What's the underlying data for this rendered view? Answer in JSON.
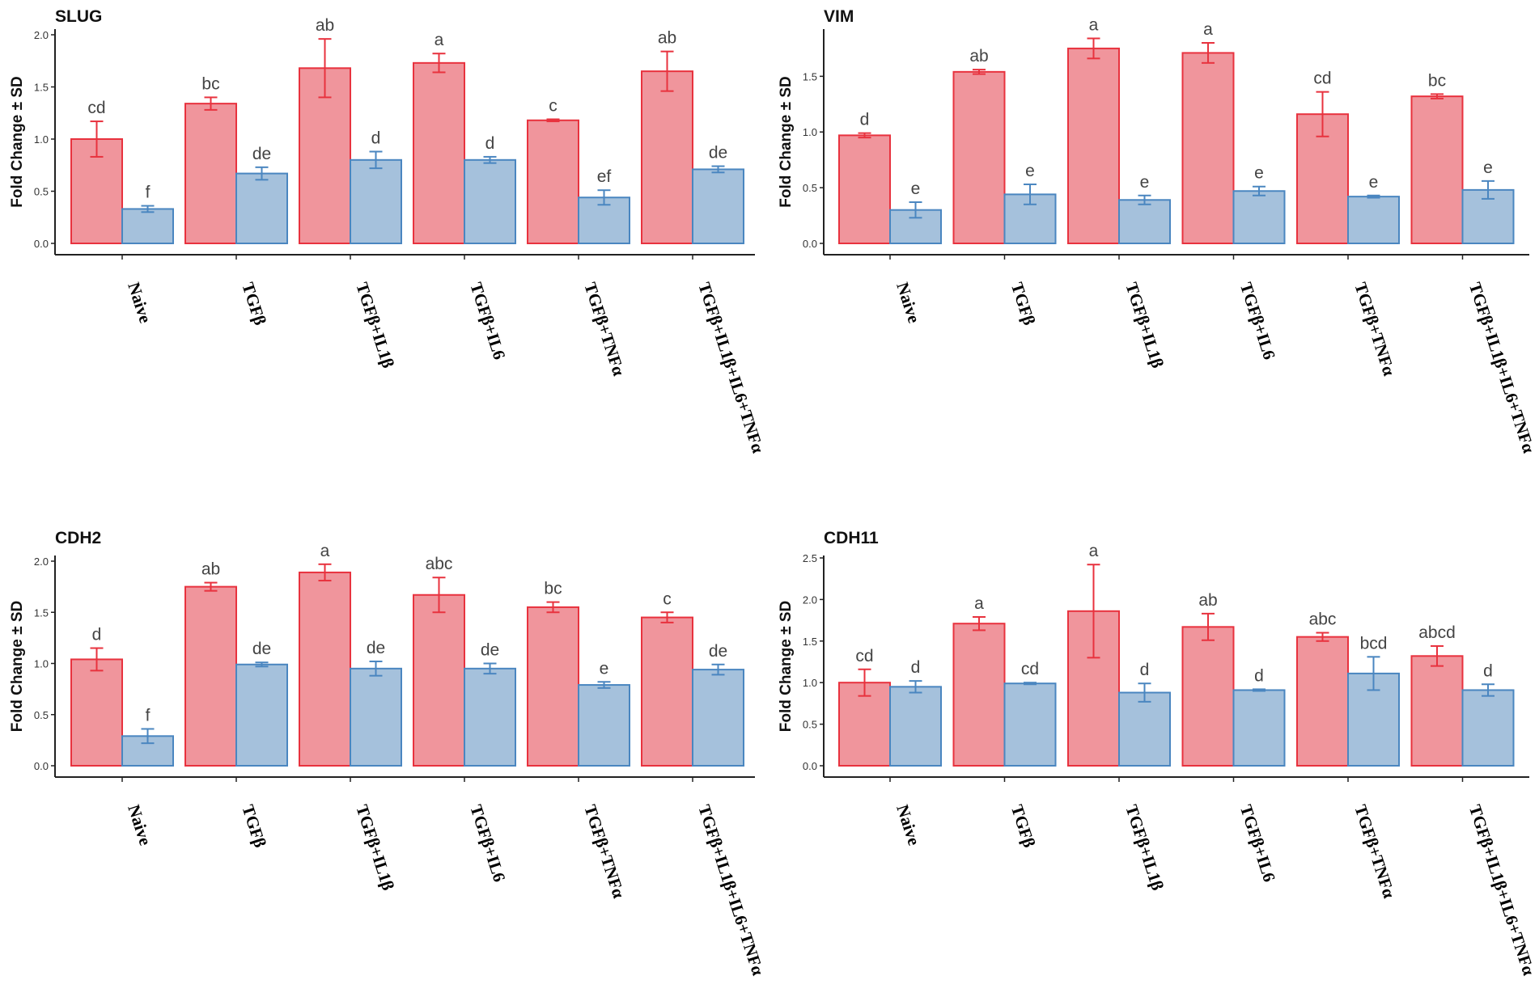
{
  "figure": {
    "colors": {
      "red_fill": "#f0959c",
      "red_stroke": "#e8323e",
      "blue_fill": "#a5c1dc",
      "blue_stroke": "#4a86c0",
      "axis": "#222222"
    }
  },
  "chart_data": [
    {
      "type": "bar",
      "title": "SLUG",
      "ylabel": "Fold Change ± SD",
      "categories": [
        "Naive",
        "TGFβ",
        "TGFβ+IL1β",
        "TGFβ+IL6",
        "TGFβ+TNFα",
        "TGFβ+IL1β+IL6+TNFα"
      ],
      "yticks": [
        "0.0",
        "0.5",
        "1.0",
        "1.5",
        "2.0"
      ],
      "ylim": [
        0,
        2.0
      ],
      "series": [
        {
          "name": "red",
          "values": [
            1.0,
            1.34,
            1.68,
            1.73,
            1.18,
            1.65
          ],
          "sd": [
            0.17,
            0.06,
            0.28,
            0.09,
            0.01,
            0.19
          ],
          "labels": [
            "cd",
            "bc",
            "ab",
            "a",
            "c",
            "ab"
          ]
        },
        {
          "name": "blue",
          "values": [
            0.33,
            0.67,
            0.8,
            0.8,
            0.44,
            0.71
          ],
          "sd": [
            0.03,
            0.06,
            0.08,
            0.03,
            0.07,
            0.03
          ],
          "labels": [
            "f",
            "de",
            "d",
            "d",
            "ef",
            "de"
          ]
        }
      ]
    },
    {
      "type": "bar",
      "title": "VIM",
      "ylabel": "Fold Change ± SD",
      "categories": [
        "Naive",
        "TGFβ",
        "TGFβ+IL1β",
        "TGFβ+IL6",
        "TGFβ+TNFα",
        "TGFβ+IL1β+IL6+TNFα"
      ],
      "yticks": [
        "0.0",
        "0.5",
        "1.0",
        "1.5"
      ],
      "ylim": [
        0,
        1.88
      ],
      "series": [
        {
          "name": "red",
          "values": [
            0.97,
            1.54,
            1.75,
            1.71,
            1.16,
            1.32
          ],
          "sd": [
            0.02,
            0.02,
            0.09,
            0.09,
            0.2,
            0.02
          ],
          "labels": [
            "d",
            "ab",
            "a",
            "a",
            "cd",
            "bc"
          ]
        },
        {
          "name": "blue",
          "values": [
            0.3,
            0.44,
            0.39,
            0.47,
            0.42,
            0.48
          ],
          "sd": [
            0.07,
            0.09,
            0.04,
            0.04,
            0.01,
            0.08
          ],
          "labels": [
            "e",
            "e",
            "e",
            "e",
            "e",
            "e"
          ]
        }
      ]
    },
    {
      "type": "bar",
      "title": "CDH2",
      "ylabel": "Fold Change ± SD",
      "categories": [
        "Naive",
        "TGFβ",
        "TGFβ+IL1β",
        "TGFβ+IL6",
        "TGFβ+TNFα",
        "TGFβ+IL1β+IL6+TNFα"
      ],
      "yticks": [
        "0.0",
        "0.5",
        "1.0",
        "1.5",
        "2.0"
      ],
      "ylim": [
        0,
        2.0
      ],
      "series": [
        {
          "name": "red",
          "values": [
            1.04,
            1.75,
            1.89,
            1.67,
            1.55,
            1.45
          ],
          "sd": [
            0.11,
            0.04,
            0.08,
            0.17,
            0.05,
            0.05
          ],
          "labels": [
            "d",
            "ab",
            "a",
            "abc",
            "bc",
            "c"
          ]
        },
        {
          "name": "blue",
          "values": [
            0.29,
            0.99,
            0.95,
            0.95,
            0.79,
            0.94
          ],
          "sd": [
            0.07,
            0.02,
            0.07,
            0.05,
            0.03,
            0.05
          ],
          "labels": [
            "f",
            "de",
            "de",
            "de",
            "e",
            "de"
          ]
        }
      ]
    },
    {
      "type": "bar",
      "title": "CDH11",
      "ylabel": "Fold Change ± SD",
      "categories": [
        "Naive",
        "TGFβ",
        "TGFβ+IL1β",
        "TGFβ+IL6",
        "TGFβ+TNFα",
        "TGFβ+IL1β+IL6+TNFα"
      ],
      "yticks": [
        "0.0",
        "0.5",
        "1.0",
        "1.5",
        "2.0",
        "2.5"
      ],
      "ylim": [
        0,
        2.5
      ],
      "series": [
        {
          "name": "red",
          "values": [
            1.0,
            1.71,
            1.86,
            1.67,
            1.55,
            1.32
          ],
          "sd": [
            0.16,
            0.08,
            0.56,
            0.16,
            0.05,
            0.12
          ],
          "labels": [
            "cd",
            "a",
            "a",
            "ab",
            "abc",
            "abcd"
          ]
        },
        {
          "name": "blue",
          "values": [
            0.95,
            0.99,
            0.88,
            0.91,
            1.11,
            0.91
          ],
          "sd": [
            0.07,
            0.01,
            0.11,
            0.01,
            0.2,
            0.07
          ],
          "labels": [
            "d",
            "cd",
            "d",
            "d",
            "bcd",
            "d"
          ]
        }
      ]
    }
  ]
}
